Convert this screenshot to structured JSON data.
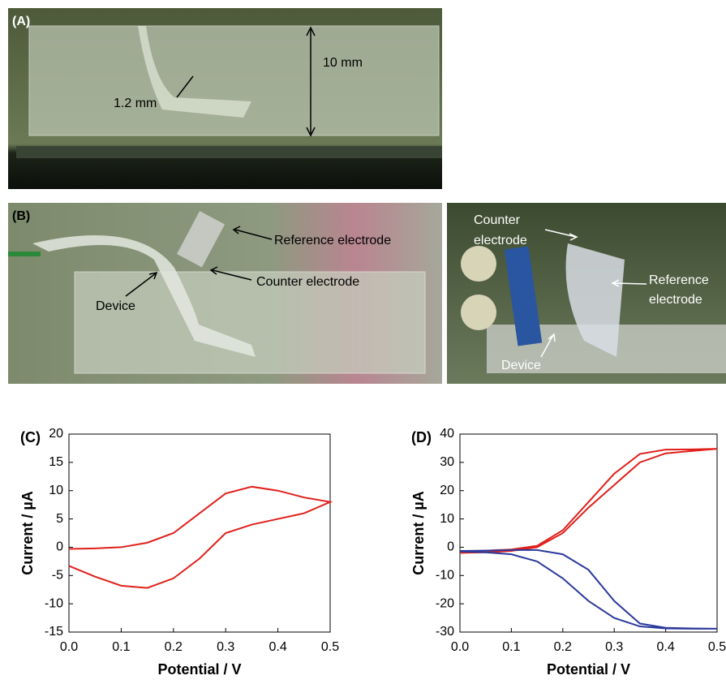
{
  "photos": {
    "a": {
      "label": "(A)",
      "channel_width": "1.2 mm",
      "height": "10 mm"
    },
    "b_left": {
      "label": "(B)",
      "reference": "Reference electrode",
      "counter": "Counter electrode",
      "device": "Device"
    },
    "b_right": {
      "counter": [
        "Counter",
        "electrode"
      ],
      "reference": [
        "Reference",
        "electrode"
      ],
      "device": "Device"
    }
  },
  "chart_data": [
    {
      "type": "line",
      "label": "(C)",
      "xlabel": "Potential / V",
      "ylabel": "Current / µA",
      "xlim": [
        0,
        0.5
      ],
      "xticks": [
        {
          "value": 0,
          "label": "0.0"
        },
        0.1,
        0.2,
        0.3,
        0.4,
        0.5
      ],
      "ylim": [
        -15,
        20
      ],
      "yticks": [
        -15,
        -10,
        -5,
        0,
        5,
        10,
        15,
        20
      ],
      "series": [
        {
          "color": "#e0201b",
          "x": [
            0,
            0.05,
            0.1,
            0.15,
            0.2,
            0.25,
            0.3,
            0.35,
            0.4,
            0.45,
            0.5,
            0.45,
            0.4,
            0.35,
            0.3,
            0.25,
            0.2,
            0.15,
            0.1,
            0.05,
            0
          ],
          "values": [
            -0.3,
            -0.2,
            0,
            0.8,
            2.5,
            6,
            9.5,
            10.7,
            10,
            8.8,
            8,
            6,
            5,
            4,
            2.5,
            -2,
            -5.5,
            -7.2,
            -6.8,
            -5.2,
            -3.3
          ]
        }
      ]
    },
    {
      "type": "line",
      "label": "(D)",
      "xlabel": "Potential / V",
      "ylabel": "Current / µA",
      "xlim": [
        0,
        0.5
      ],
      "xticks": [
        {
          "value": 0,
          "label": "0.0"
        },
        0.1,
        0.2,
        0.3,
        0.4,
        0.5
      ],
      "ylim": [
        -30,
        40
      ],
      "yticks": [
        -30,
        -20,
        -10,
        0,
        10,
        20,
        30,
        40
      ],
      "series": [
        {
          "color": "#e0201b",
          "x": [
            0,
            0.05,
            0.1,
            0.15,
            0.2,
            0.25,
            0.3,
            0.35,
            0.4,
            0.45,
            0.5,
            0.45,
            0.4,
            0.35,
            0.3,
            0.25,
            0.2,
            0.15,
            0.1,
            0.05,
            0
          ],
          "values": [
            -1.5,
            -1.2,
            -0.8,
            0.5,
            6,
            16,
            26,
            33,
            34.5,
            34.6,
            34.8,
            34,
            33.2,
            30,
            22,
            14,
            5,
            0,
            -1.3,
            -1.8,
            -2
          ]
        },
        {
          "color": "#2b3a9c",
          "x": [
            0,
            0.05,
            0.1,
            0.15,
            0.2,
            0.25,
            0.3,
            0.35,
            0.4,
            0.45,
            0.5,
            0.45,
            0.4,
            0.35,
            0.3,
            0.25,
            0.2,
            0.15,
            0.1,
            0.05,
            0
          ],
          "values": [
            -1.5,
            -1.8,
            -2.5,
            -5,
            -11,
            -19,
            -25,
            -28,
            -28.7,
            -28.8,
            -28.8,
            -28.7,
            -28.5,
            -27,
            -19,
            -8,
            -2.5,
            -1,
            -1,
            -1.2,
            -1.3
          ]
        }
      ]
    }
  ]
}
